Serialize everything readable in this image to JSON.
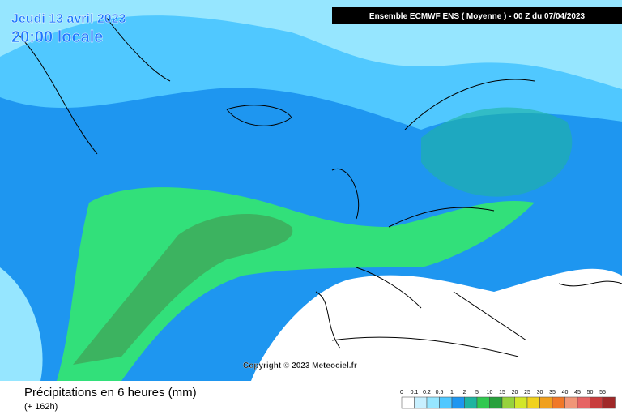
{
  "header": {
    "date": "Jeudi 13 avril 2023",
    "time": "20:00 locale",
    "run": "Ensemble ECMWF ENS  ( Moyenne )  -  00 Z du 07/04/2023"
  },
  "copyright": "Copyright © 2023 Meteociel.fr",
  "footer": {
    "title": "Précipitations en 6 heures (mm)",
    "lead": "(+ 162h)"
  },
  "legend": {
    "items": [
      {
        "label": "0",
        "color": "#ffffff"
      },
      {
        "label": "0.1",
        "color": "#c8f0ff"
      },
      {
        "label": "0.2",
        "color": "#96e6ff"
      },
      {
        "label": "0.5",
        "color": "#50c8ff"
      },
      {
        "label": "1",
        "color": "#1e96f0"
      },
      {
        "label": "2",
        "color": "#1eb4a0"
      },
      {
        "label": "5",
        "color": "#32c850"
      },
      {
        "label": "10",
        "color": "#28a03c"
      },
      {
        "label": "15",
        "color": "#96d23c"
      },
      {
        "label": "20",
        "color": "#d2e628"
      },
      {
        "label": "25",
        "color": "#f0d21e"
      },
      {
        "label": "30",
        "color": "#f0a01e"
      },
      {
        "label": "35",
        "color": "#f07828"
      },
      {
        "label": "40",
        "color": "#f09678"
      },
      {
        "label": "45",
        "color": "#e66464"
      },
      {
        "label": "50",
        "color": "#c83c3c"
      },
      {
        "label": "55",
        "color": "#a02828"
      }
    ]
  }
}
